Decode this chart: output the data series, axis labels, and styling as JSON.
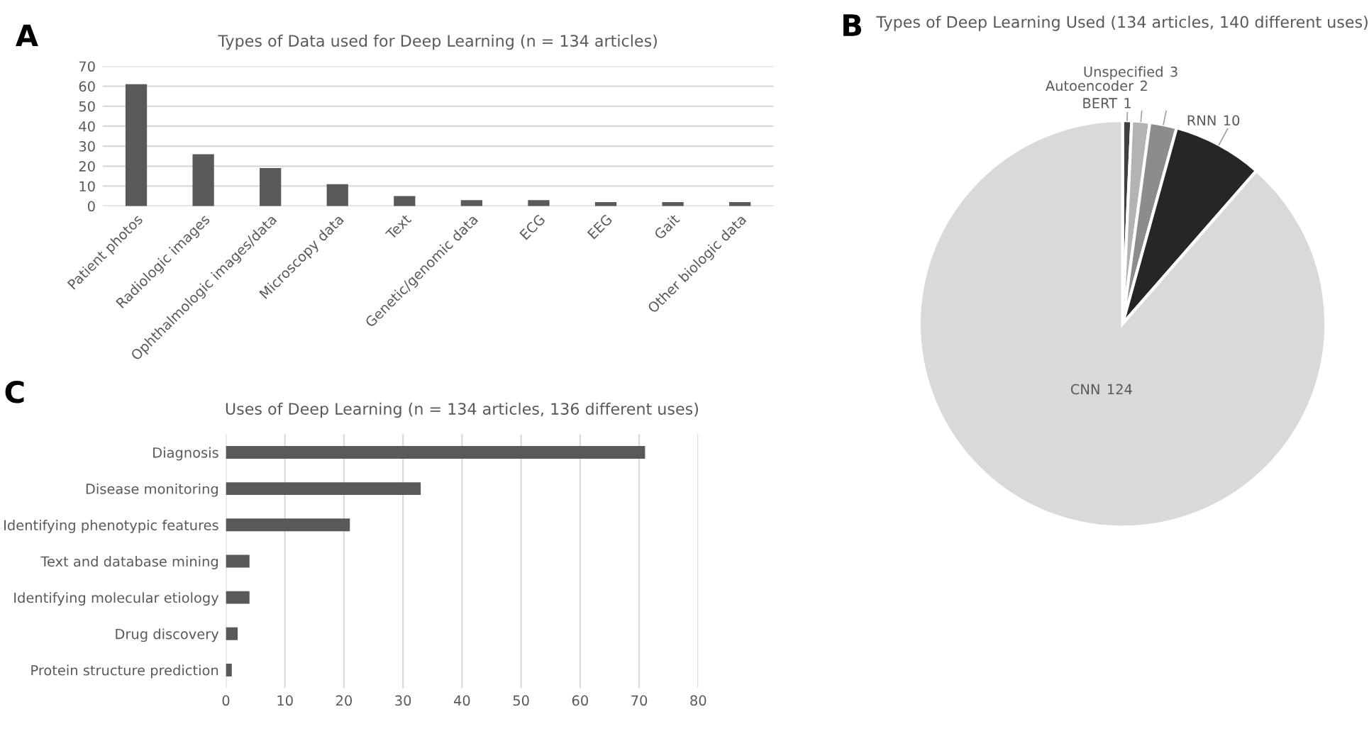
{
  "chart_data": [
    {
      "type": "bar",
      "title": "Types of Data used for Deep Learning (n = 134 articles)",
      "annotations": [
        "A"
      ],
      "categories": [
        "Patient photos",
        "Radiologic images",
        "Ophthalmologic images/data",
        "Microscopy data",
        "Text",
        "Genetic/genomic data",
        "ECG",
        "EEG",
        "Gait",
        "Other biologic data"
      ],
      "values": [
        61,
        26,
        19,
        11,
        5,
        3,
        3,
        2,
        2,
        2
      ],
      "color": "#595959",
      "ylim": [
        0,
        70
      ],
      "yticks": [
        0,
        10,
        20,
        30,
        40,
        50,
        60,
        70
      ],
      "grid": "y"
    },
    {
      "type": "pie",
      "title": "Types of Deep Learning Used (134 articles, 140 different uses)",
      "annotations": [
        "B"
      ],
      "categories": [
        "BERT",
        "Autoencoder",
        "Unspecified",
        "RNN",
        "CNN"
      ],
      "values": [
        1,
        2,
        3,
        10,
        124
      ],
      "colors": [
        "#404040",
        "#b3b3b3",
        "#8c8c8c",
        "#262626",
        "#d9d9d9"
      ],
      "data_labels": true
    },
    {
      "type": "bar",
      "orientation": "horizontal",
      "title": "Uses of Deep Learning (n = 134 articles, 136 different uses)",
      "annotations": [
        "C"
      ],
      "categories": [
        "Diagnosis",
        "Disease monitoring",
        "Identifying phenotypic features",
        "Text and database mining",
        "Identifying molecular etiology",
        "Drug discovery",
        "Protein structure prediction"
      ],
      "values": [
        71,
        33,
        21,
        4,
        4,
        2,
        1
      ],
      "color": "#595959",
      "xlim": [
        0,
        80
      ],
      "xticks": [
        0,
        10,
        20,
        30,
        40,
        50,
        60,
        70,
        80
      ],
      "grid": "x"
    }
  ]
}
